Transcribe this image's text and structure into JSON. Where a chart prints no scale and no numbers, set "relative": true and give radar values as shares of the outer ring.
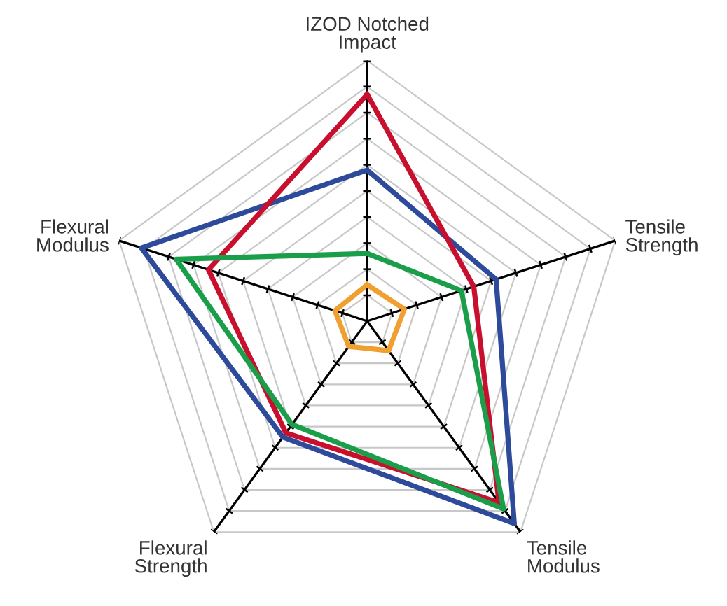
{
  "chart_data": {
    "type": "radar",
    "relative": true,
    "grid": true,
    "marker": "none",
    "categories": [
      "IZOD Notched\nImpact",
      "Tensile\nStrength",
      "Tensile\nModulus",
      "Flexural\nStrength",
      "Flexural\nModulus"
    ],
    "series": [
      {
        "color": "#2e4a9a",
        "values": [
          0.58,
          0.52,
          0.96,
          0.55,
          0.91
        ]
      },
      {
        "color": "#c8102e",
        "values": [
          0.87,
          0.43,
          0.86,
          0.53,
          0.64
        ]
      },
      {
        "color": "#1a9e4a",
        "values": [
          0.26,
          0.38,
          0.89,
          0.49,
          0.77
        ]
      },
      {
        "color": "#f0a030",
        "values": [
          0.14,
          0.15,
          0.14,
          0.12,
          0.13
        ]
      }
    ]
  }
}
